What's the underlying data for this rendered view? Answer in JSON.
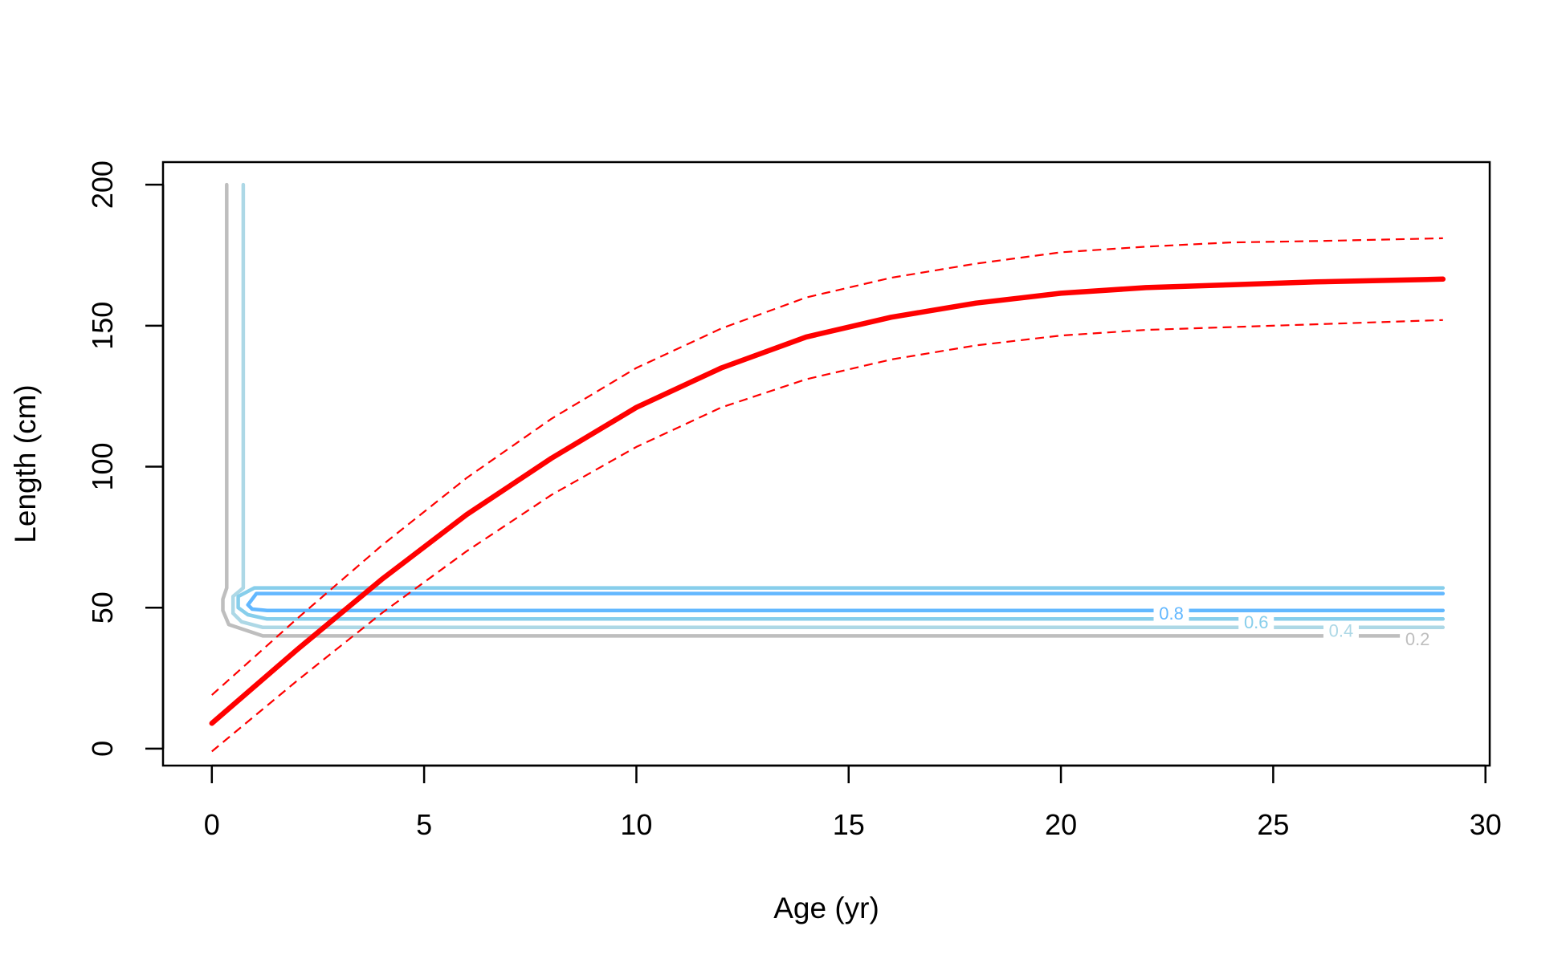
{
  "chart_data": {
    "type": "line",
    "xlabel": "Age (yr)",
    "ylabel": "Length (cm)",
    "xlim": [
      -1.15,
      30.1
    ],
    "ylim": [
      -6,
      208
    ],
    "x_ticks": [
      0,
      5,
      10,
      15,
      20,
      25,
      30
    ],
    "y_ticks": [
      0,
      50,
      100,
      150,
      200
    ],
    "grid": false,
    "legend": "none",
    "series": [
      {
        "role": "mean-length",
        "color": "#ff0000",
        "style": "solid",
        "x": [
          0,
          2,
          4,
          6,
          8,
          10,
          12,
          14,
          16,
          18,
          20,
          22,
          24,
          26,
          29
        ],
        "y": [
          9,
          35,
          60,
          83,
          103,
          121,
          135,
          146,
          153,
          158,
          161.5,
          163.5,
          164.5,
          165.5,
          166.5
        ]
      },
      {
        "role": "upper-interval",
        "color": "#ff0000",
        "style": "dashed",
        "x": [
          0,
          2,
          4,
          6,
          8,
          10,
          12,
          14,
          16,
          18,
          20,
          22,
          24,
          26,
          29
        ],
        "y": [
          19,
          46,
          72,
          96,
          117,
          135,
          149,
          160,
          167,
          172,
          176,
          178,
          179.5,
          180,
          181
        ]
      },
      {
        "role": "lower-interval",
        "color": "#ff0000",
        "style": "dashed",
        "x": [
          0,
          2,
          4,
          6,
          8,
          10,
          12,
          14,
          16,
          18,
          20,
          22,
          24,
          26,
          29
        ],
        "y": [
          -1,
          24,
          48,
          70,
          90,
          107,
          121,
          131,
          138,
          143,
          146.5,
          148.5,
          149.5,
          150.5,
          152
        ]
      }
    ],
    "contours": [
      {
        "label": "0.2",
        "color": "#bebebe",
        "x": [
          0.35,
          0.35,
          0.26,
          0.26,
          0.4,
          1.2,
          28
        ],
        "y": [
          200,
          57,
          53,
          49,
          44,
          40,
          40
        ],
        "label_x": 28.4,
        "label_y": 39
      },
      {
        "label": "0.4",
        "color": "#add8e6",
        "x": [
          0.74,
          0.74,
          0.5,
          0.5,
          0.7,
          1.2,
          29
        ],
        "y": [
          200,
          57,
          54,
          48,
          45,
          43,
          43
        ],
        "label_x": 26.6,
        "label_y": 42
      },
      {
        "label": "0.6",
        "color": "#87ceeb",
        "x": [
          29,
          1.0,
          0.62,
          0.62,
          0.85,
          1.3,
          29
        ],
        "y": [
          57,
          57,
          54,
          50,
          47.5,
          46,
          46
        ],
        "label_x": 24.6,
        "label_y": 45
      },
      {
        "label": "0.8",
        "color": "#63b8ff",
        "x": [
          29,
          1.05,
          0.85,
          0.95,
          1.3,
          29
        ],
        "y": [
          55,
          55,
          51,
          49.5,
          49,
          49
        ],
        "label_x": 22.6,
        "label_y": 48
      }
    ]
  }
}
